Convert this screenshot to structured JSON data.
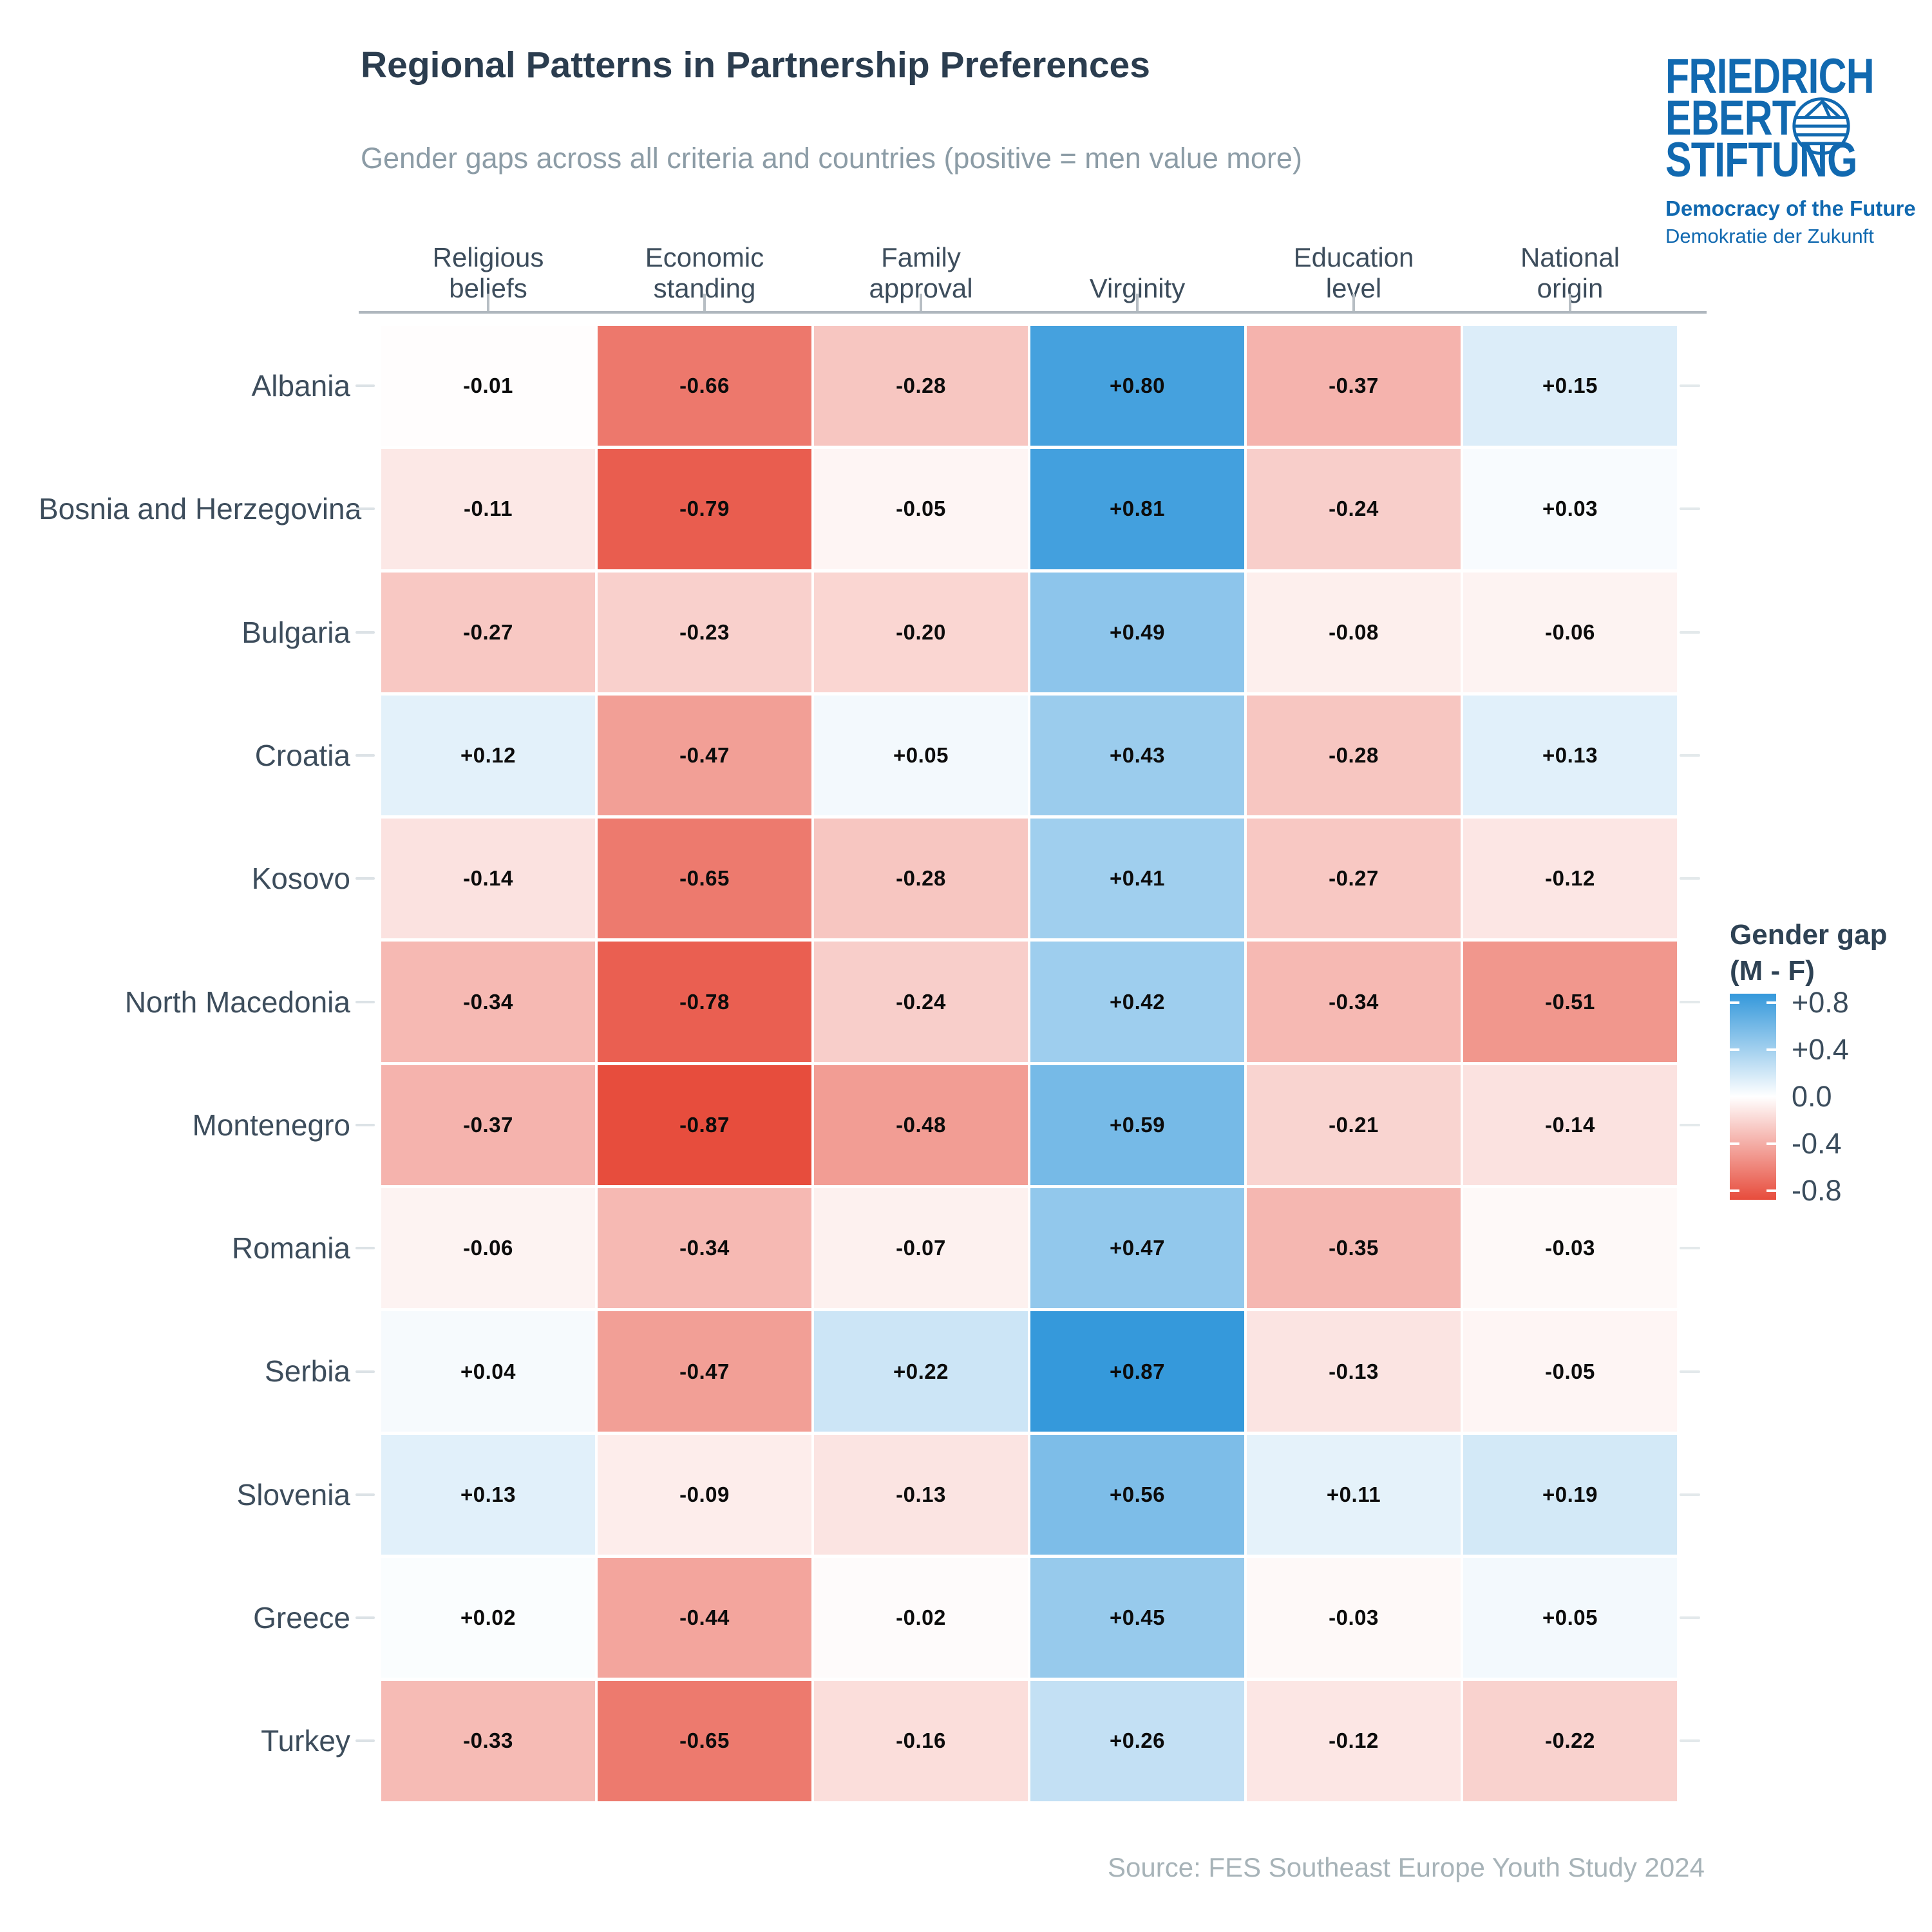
{
  "header": {
    "title": "Regional Patterns in Partnership Preferences",
    "subtitle": "Gender gaps across all criteria and countries (positive = men value more)"
  },
  "logo": {
    "line1": "FRIEDRICH",
    "line2": "EBERT",
    "line3": "STIFTUNG",
    "tagline_en": "Democracy of the Future",
    "tagline_de": "Demokratie der Zukunft",
    "brand_color": "#1169B0"
  },
  "chart_data": {
    "type": "heatmap",
    "title": "Regional Patterns in Partnership Preferences",
    "subtitle": "Gender gaps across all criteria and countries (positive = men value more)",
    "columns": [
      "Religious beliefs",
      "Economic standing",
      "Family approval",
      "Virginity",
      "Education level",
      "National origin"
    ],
    "rows": [
      "Albania",
      "Bosnia and Herzegovina",
      "Bulgaria",
      "Croatia",
      "Kosovo",
      "North Macedonia",
      "Montenegro",
      "Romania",
      "Serbia",
      "Slovenia",
      "Greece",
      "Turkey"
    ],
    "values": [
      [
        -0.01,
        -0.66,
        -0.28,
        0.8,
        -0.37,
        0.15
      ],
      [
        -0.11,
        -0.79,
        -0.05,
        0.81,
        -0.24,
        0.03
      ],
      [
        -0.27,
        -0.23,
        -0.2,
        0.49,
        -0.08,
        -0.06
      ],
      [
        0.12,
        -0.47,
        0.05,
        0.43,
        -0.28,
        0.13
      ],
      [
        -0.14,
        -0.65,
        -0.28,
        0.41,
        -0.27,
        -0.12
      ],
      [
        -0.34,
        -0.78,
        -0.24,
        0.42,
        -0.34,
        -0.51
      ],
      [
        -0.37,
        -0.87,
        -0.48,
        0.59,
        -0.21,
        -0.14
      ],
      [
        -0.06,
        -0.34,
        -0.07,
        0.47,
        -0.35,
        -0.03
      ],
      [
        0.04,
        -0.47,
        0.22,
        0.87,
        -0.13,
        -0.05
      ],
      [
        0.13,
        -0.09,
        -0.13,
        0.56,
        0.11,
        0.19
      ],
      [
        0.02,
        -0.44,
        -0.02,
        0.45,
        -0.03,
        0.05
      ],
      [
        -0.33,
        -0.65,
        -0.16,
        0.26,
        -0.12,
        -0.22
      ]
    ],
    "color_scale": {
      "negative": "#E74C3C",
      "positive": "#3498DB",
      "vmax": 0.875
    },
    "legend": {
      "title_lines": [
        "Gender gap",
        "(M - F)"
      ],
      "ticks": [
        "+0.8",
        "+0.4",
        "0.0",
        "-0.4",
        "-0.8"
      ],
      "tick_values": [
        0.8,
        0.4,
        0.0,
        -0.4,
        -0.8
      ],
      "position": "right"
    },
    "grid": "off",
    "value_format": "signed two decimals"
  },
  "footer": {
    "source": "Source: FES Southeast Europe Youth Study 2024"
  }
}
